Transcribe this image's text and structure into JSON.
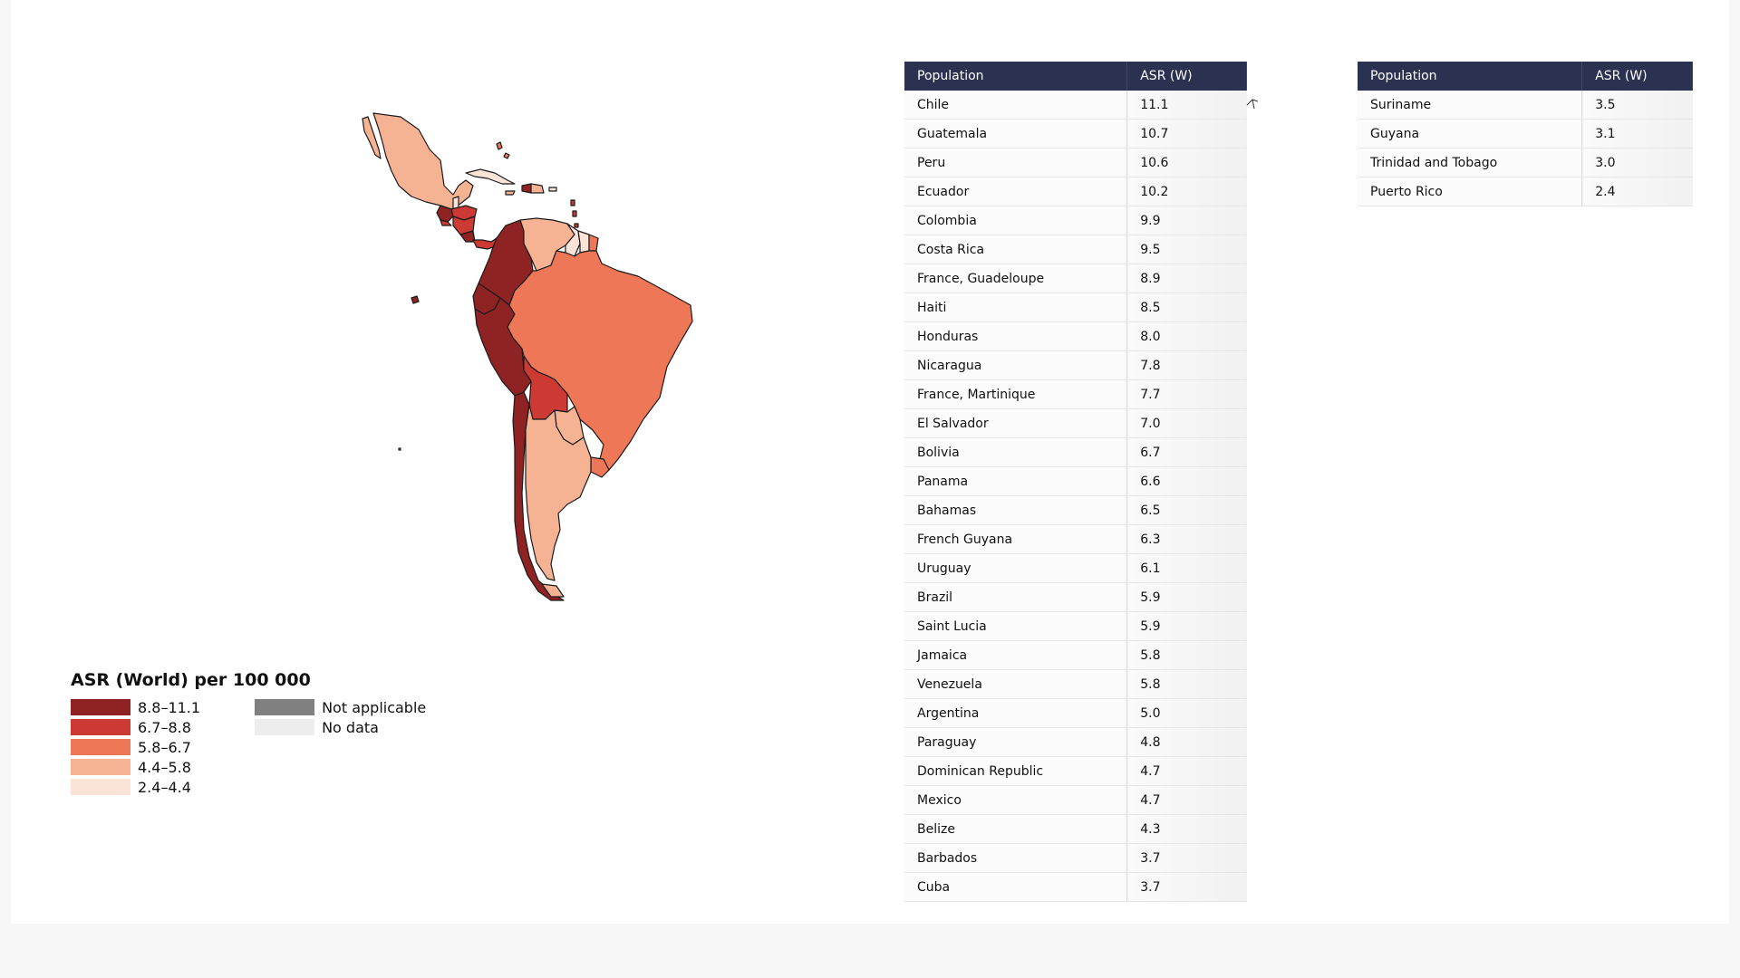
{
  "colors": {
    "bin_1": "#8f2323",
    "bin_2": "#cc3a33",
    "bin_3": "#ee7758",
    "bin_4": "#f6b394",
    "bin_5": "#fbe3d8",
    "not_applicable": "#808080",
    "no_data": "#ededed",
    "table_header": "#2b3150"
  },
  "legend": {
    "title": "ASR (World) per 100 000",
    "bins": [
      {
        "label": "8.8–11.1",
        "color": "#8f2323"
      },
      {
        "label": "6.7–8.8",
        "color": "#cc3a33"
      },
      {
        "label": "5.8–6.7",
        "color": "#ee7758"
      },
      {
        "label": "4.4–5.8",
        "color": "#f6b394"
      },
      {
        "label": "2.4–4.4",
        "color": "#fbe3d8"
      }
    ],
    "other": [
      {
        "label": "Not applicable",
        "color": "#808080"
      },
      {
        "label": "No data",
        "color": "#ededed"
      }
    ]
  },
  "table_left": {
    "headers": [
      "Population",
      "ASR (W)"
    ],
    "rows": [
      [
        "Chile",
        "11.1"
      ],
      [
        "Guatemala",
        "10.7"
      ],
      [
        "Peru",
        "10.6"
      ],
      [
        "Ecuador",
        "10.2"
      ],
      [
        "Colombia",
        "9.9"
      ],
      [
        "Costa Rica",
        "9.5"
      ],
      [
        "France, Guadeloupe",
        "8.9"
      ],
      [
        "Haiti",
        "8.5"
      ],
      [
        "Honduras",
        "8.0"
      ],
      [
        "Nicaragua",
        "7.8"
      ],
      [
        "France, Martinique",
        "7.7"
      ],
      [
        "El Salvador",
        "7.0"
      ],
      [
        "Bolivia",
        "6.7"
      ],
      [
        "Panama",
        "6.6"
      ],
      [
        "Bahamas",
        "6.5"
      ],
      [
        "French Guyana",
        "6.3"
      ],
      [
        "Uruguay",
        "6.1"
      ],
      [
        "Brazil",
        "5.9"
      ],
      [
        "Saint Lucia",
        "5.9"
      ],
      [
        "Jamaica",
        "5.8"
      ],
      [
        "Venezuela",
        "5.8"
      ],
      [
        "Argentina",
        "5.0"
      ],
      [
        "Paraguay",
        "4.8"
      ],
      [
        "Dominican Republic",
        "4.7"
      ],
      [
        "Mexico",
        "4.7"
      ],
      [
        "Belize",
        "4.3"
      ],
      [
        "Barbados",
        "3.7"
      ],
      [
        "Cuba",
        "3.7"
      ]
    ]
  },
  "table_right": {
    "headers": [
      "Population",
      "ASR (W)"
    ],
    "rows": [
      [
        "Suriname",
        "3.5"
      ],
      [
        "Guyana",
        "3.1"
      ],
      [
        "Trinidad and Tobago",
        "3.0"
      ],
      [
        "Puerto Rico",
        "2.4"
      ]
    ]
  }
}
